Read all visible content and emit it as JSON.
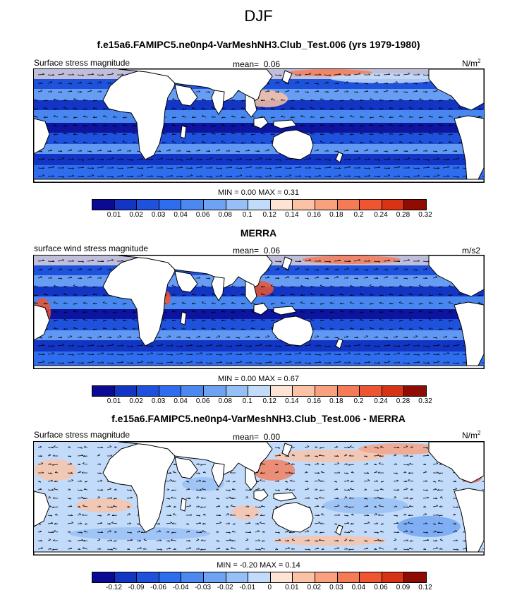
{
  "season": "DJF",
  "colors": {
    "palette": [
      "#0a0a93",
      "#1235c4",
      "#1f52dc",
      "#2e6ded",
      "#4b88f0",
      "#6ea3f4",
      "#96bff6",
      "#c2dbfa",
      "#fde3d3",
      "#fcc2a5",
      "#f9a07e",
      "#f57b56",
      "#ef5530",
      "#d93316",
      "#8f0c03"
    ],
    "land": "#ffffff",
    "coast": "#000000"
  },
  "panels": [
    {
      "title": "f.e15a6.FAMIPC5.ne0np4-VarMeshNH3.Club_Test.006 (yrs 1979-1980)",
      "left_label": "Surface stress magnitude",
      "mean_label": "mean=",
      "mean_value": "0.06",
      "units": "N/m",
      "units_sup": "2",
      "minmax": "MIN =  0.00 MAX =  0.31",
      "field": "stress",
      "colorbar_labels": [
        "0.01",
        "0.02",
        "0.03",
        "0.04",
        "0.06",
        "0.08",
        "0.1",
        "0.12",
        "0.14",
        "0.16",
        "0.18",
        "0.2",
        "0.24",
        "0.28",
        "0.32"
      ]
    },
    {
      "title": "MERRA",
      "left_label": "surface wind stress magnitude",
      "mean_label": "mean=",
      "mean_value": "0.06",
      "units": "m/s2",
      "units_sup": "",
      "minmax": "MIN =  0.00 MAX =  0.67",
      "field": "stress",
      "colorbar_labels": [
        "0.01",
        "0.02",
        "0.03",
        "0.04",
        "0.06",
        "0.08",
        "0.1",
        "0.12",
        "0.14",
        "0.16",
        "0.18",
        "0.2",
        "0.24",
        "0.28",
        "0.32"
      ]
    },
    {
      "title": "f.e15a6.FAMIPC5.ne0np4-VarMeshNH3.Club_Test.006 - MERRA",
      "left_label": "Surface stress magnitude",
      "mean_label": "mean=",
      "mean_value": "0.00",
      "units": "N/m",
      "units_sup": "2",
      "minmax": "MIN = -0.20 MAX =  0.14",
      "field": "diff",
      "colorbar_labels": [
        "-0.12",
        "-0.09",
        "-0.06",
        "-0.04",
        "-0.03",
        "-0.02",
        "-0.01",
        "0",
        "0.01",
        "0.02",
        "0.03",
        "0.04",
        "0.06",
        "0.09",
        "0.12"
      ]
    }
  ]
}
